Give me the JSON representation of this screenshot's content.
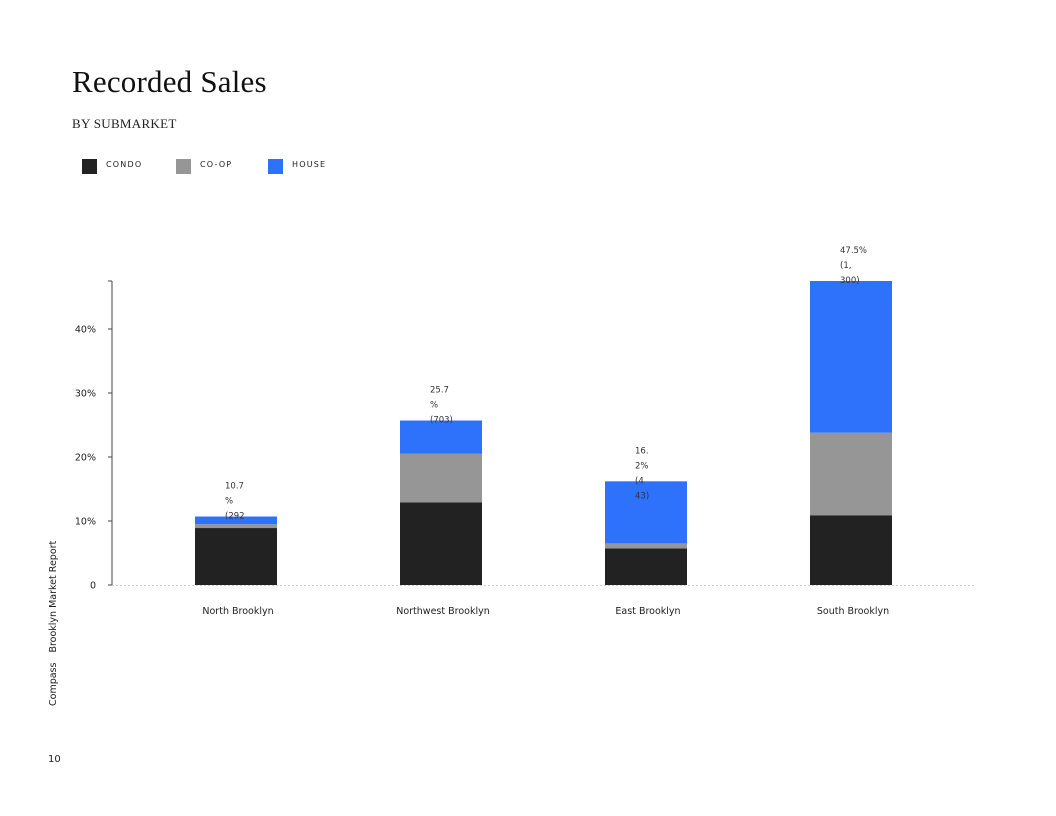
{
  "page": {
    "title": "Recorded Sales",
    "subtitle": "BY SUBMARKET",
    "side_brand": "Compass",
    "side_report": "Brooklyn Market Report",
    "page_number": "10"
  },
  "legend": [
    {
      "label": "CONDO",
      "color": "#222222"
    },
    {
      "label": "CO-OP",
      "color": "#969696"
    },
    {
      "label": "HOUSE",
      "color": "#2e72fc"
    }
  ],
  "chart_data": {
    "type": "bar",
    "stacked": true,
    "categories": [
      "North Brooklyn",
      "Northwest Brooklyn",
      "East Brooklyn",
      "South Brooklyn"
    ],
    "series": [
      {
        "name": "CONDO",
        "color": "#222222",
        "values": [
          8.9,
          12.9,
          5.7,
          10.9
        ]
      },
      {
        "name": "CO-OP",
        "color": "#969696",
        "values": [
          0.6,
          7.6,
          0.8,
          12.9
        ]
      },
      {
        "name": "HOUSE",
        "color": "#2e72fc",
        "values": [
          1.2,
          5.2,
          9.7,
          23.7
        ]
      }
    ],
    "totals": [
      10.7,
      25.7,
      16.2,
      47.5
    ],
    "total_labels": [
      [
        "10.7",
        "%",
        "(292"
      ],
      [
        "25.7",
        "%",
        "(703)"
      ],
      [
        "16.",
        "2%",
        "(4",
        "43)"
      ],
      [
        "47.5%",
        "(1,",
        "300)"
      ]
    ],
    "yticks": [
      0,
      10,
      20,
      30,
      40
    ],
    "ytick_labels": [
      "0",
      "10%",
      "20%",
      "30%",
      "40%"
    ],
    "ylim": [
      0,
      47.5
    ],
    "grid": false,
    "legend_position": "top-left"
  }
}
